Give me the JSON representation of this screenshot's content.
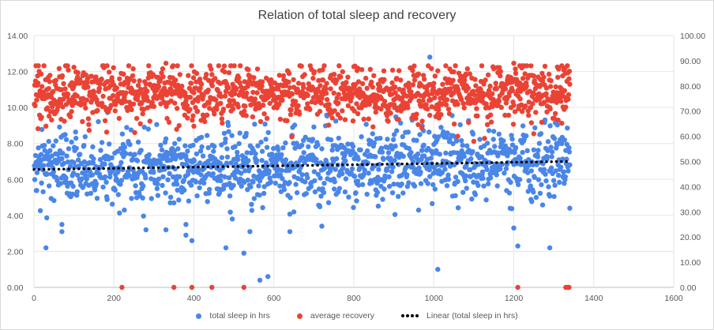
{
  "chart_data": {
    "type": "scatter",
    "title": "Relation of total sleep and recovery",
    "x_axis": {
      "min": 0,
      "max": 1600,
      "ticks": [
        "0",
        "200",
        "400",
        "600",
        "800",
        "1000",
        "1200",
        "1400",
        "1600"
      ]
    },
    "y_left": {
      "min": 0,
      "max": 14,
      "ticks": [
        "0.00",
        "2.00",
        "4.00",
        "6.00",
        "8.00",
        "10.00",
        "12.00",
        "14.00"
      ]
    },
    "y_right": {
      "min": 0,
      "max": 100,
      "ticks": [
        "0.00",
        "10.00",
        "20.00",
        "30.00",
        "40.00",
        "50.00",
        "60.00",
        "70.00",
        "80.00",
        "90.00",
        "100.00"
      ]
    },
    "grid": true,
    "legend_position": "bottom",
    "x_range": [
      1,
      1340
    ],
    "series": [
      {
        "name": "total sleep in hrs",
        "axis": "left",
        "color": "#4a86e8",
        "typical_mean": 6.6,
        "typical_spread": 1.0,
        "outliers": [
          [
            30,
            2.2
          ],
          [
            70,
            3.5
          ],
          [
            70,
            3.1
          ],
          [
            280,
            3.2
          ],
          [
            330,
            3.2
          ],
          [
            380,
            3.5
          ],
          [
            380,
            2.9
          ],
          [
            395,
            2.6
          ],
          [
            480,
            2.2
          ],
          [
            525,
            1.9
          ],
          [
            540,
            3.1
          ],
          [
            565,
            0.4
          ],
          [
            585,
            0.6
          ],
          [
            640,
            3.1
          ],
          [
            720,
            3.4
          ],
          [
            990,
            12.8
          ],
          [
            1010,
            1.0
          ],
          [
            1200,
            3.3
          ],
          [
            1210,
            2.3
          ],
          [
            1290,
            2.2
          ],
          [
            1340,
            4.4
          ],
          [
            350,
            4.7
          ]
        ]
      },
      {
        "name": "average recovery",
        "axis": "right",
        "color": "#ea4335",
        "typical_mean": 77,
        "typical_spread": 5.5,
        "outliers": [
          [
            220,
            0
          ],
          [
            350,
            0
          ],
          [
            395,
            0
          ],
          [
            445,
            0
          ],
          [
            525,
            0
          ],
          [
            1210,
            0
          ],
          [
            1330,
            0
          ],
          [
            1335,
            0
          ],
          [
            1338,
            0
          ],
          [
            330,
            89
          ],
          [
            810,
            87
          ],
          [
            1010,
            86
          ],
          [
            1200,
            89
          ],
          [
            1215,
            88
          ],
          [
            1320,
            88
          ],
          [
            10,
            63
          ],
          [
            30,
            64
          ],
          [
            290,
            66
          ],
          [
            400,
            64
          ],
          [
            1060,
            60
          ],
          [
            1250,
            61
          ],
          [
            1100,
            58
          ]
        ]
      },
      {
        "name": "Linear (total sleep in hrs)",
        "type": "trendline",
        "axis": "left",
        "color": "#000000",
        "start": [
          0,
          6.55
        ],
        "end": [
          1340,
          7.0
        ]
      }
    ]
  }
}
